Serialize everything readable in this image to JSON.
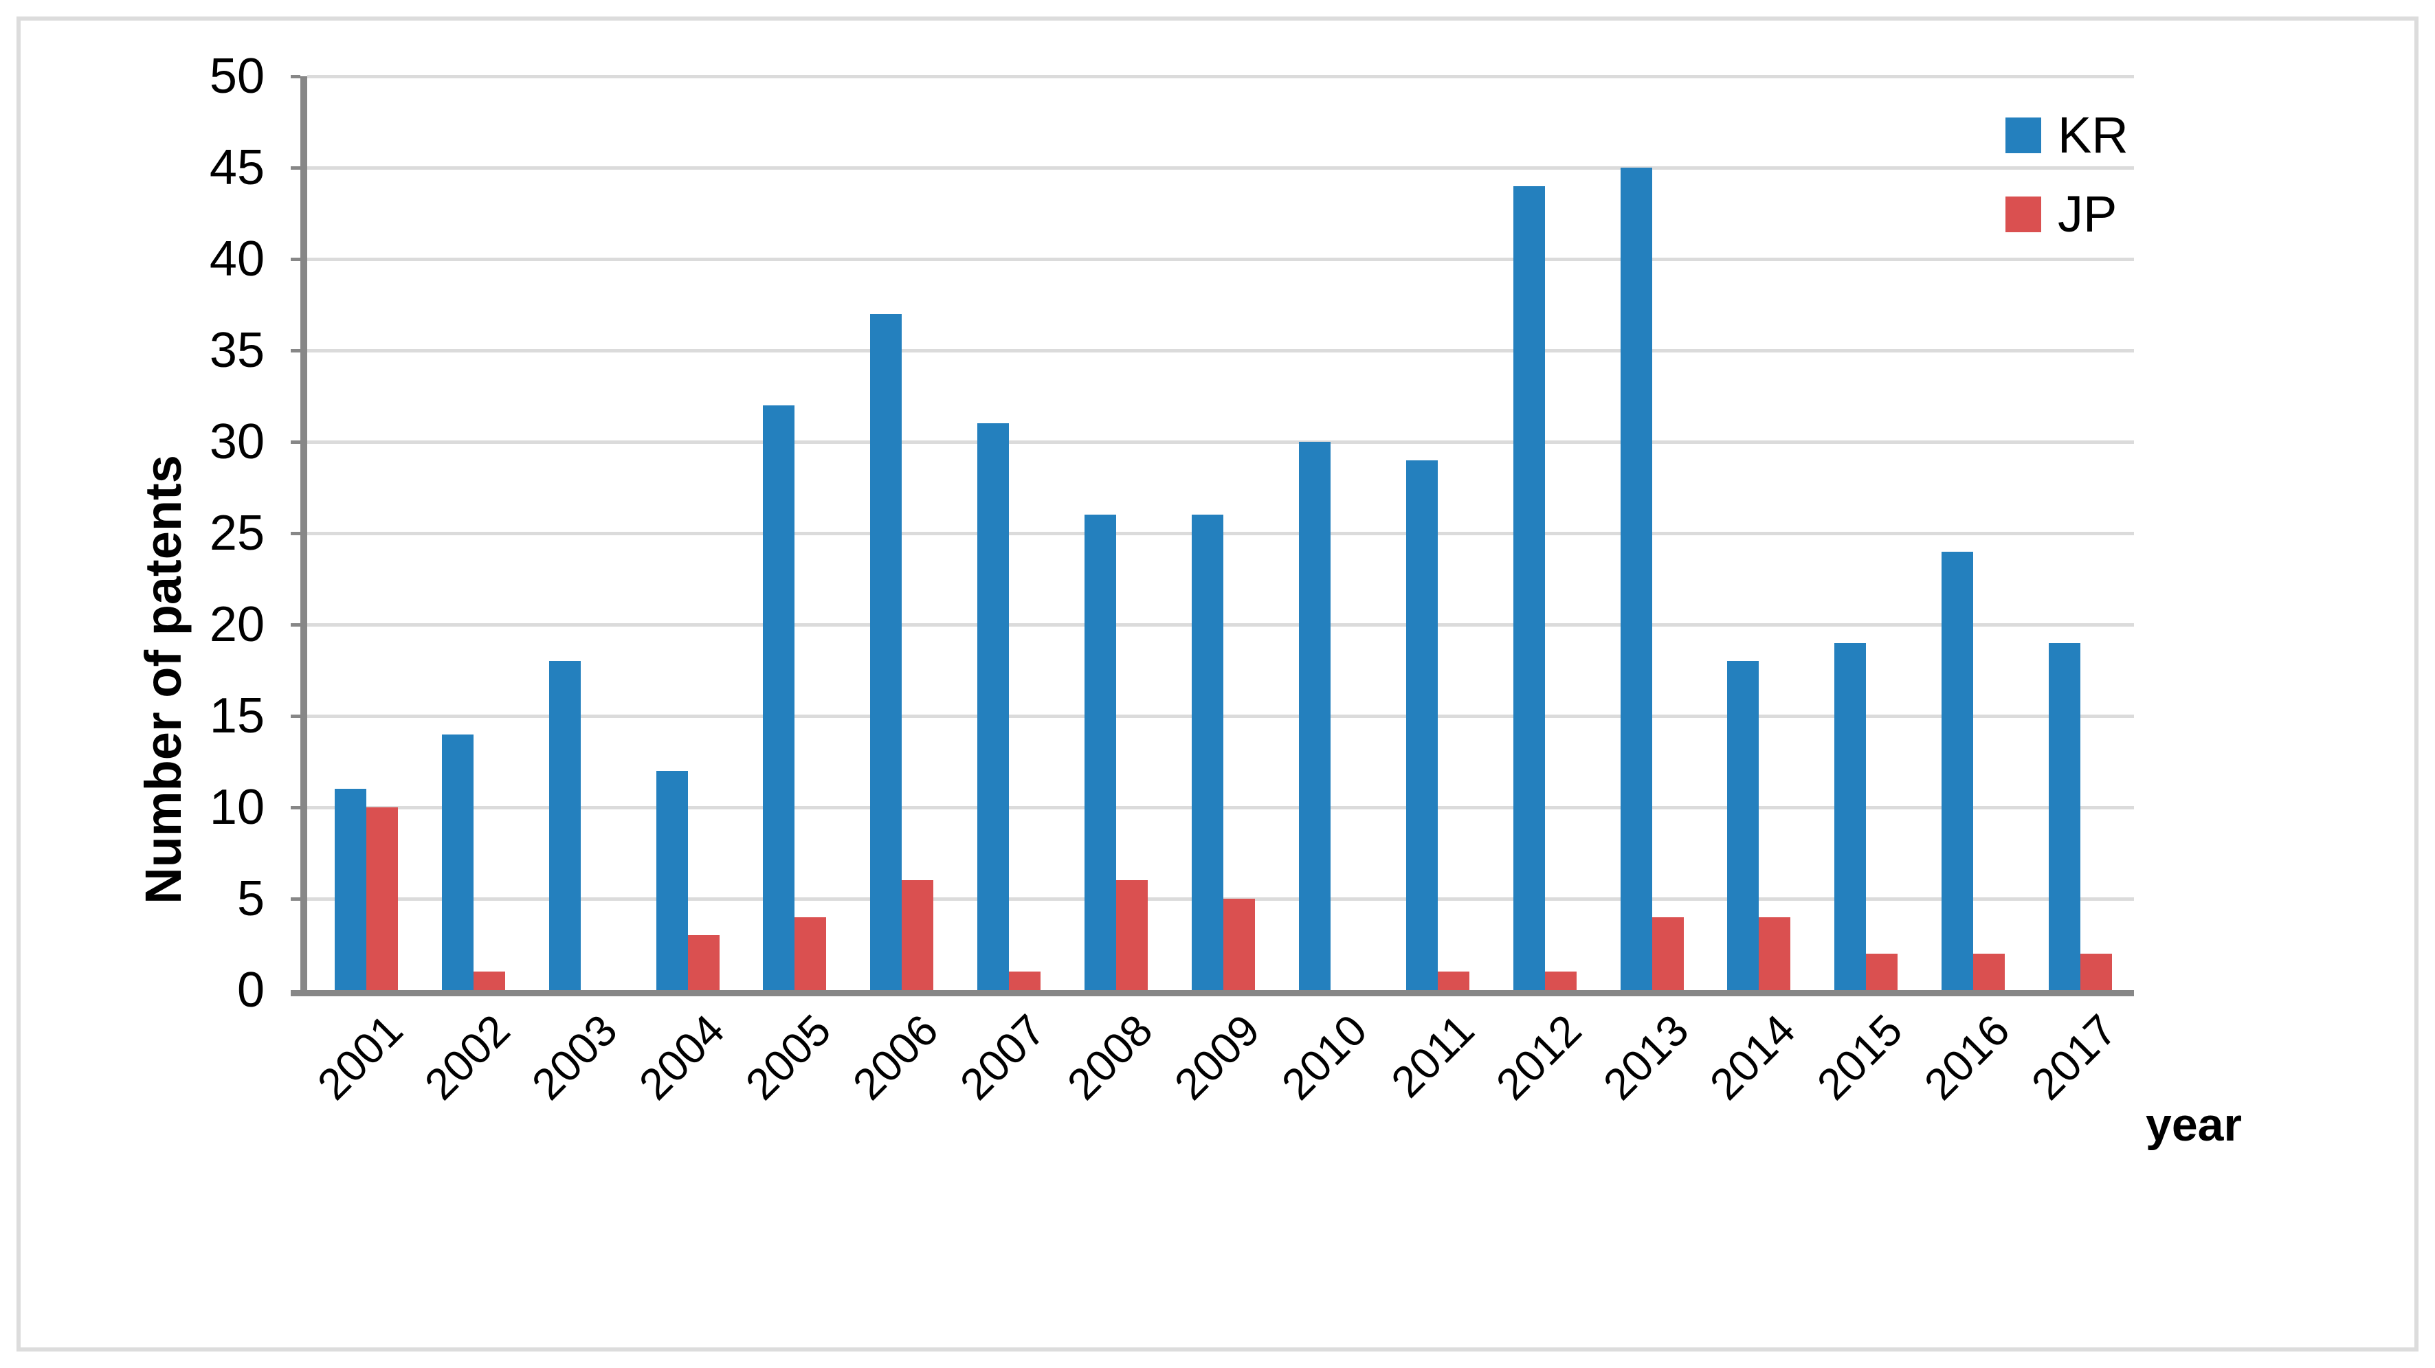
{
  "figure": {
    "background": "#ffffff",
    "border_color": "#dcdcdc"
  },
  "chart_data": {
    "type": "bar",
    "title": "",
    "categories": [
      "2001",
      "2002",
      "2003",
      "2004",
      "2005",
      "2006",
      "2007",
      "2008",
      "2009",
      "2010",
      "2011",
      "2012",
      "2013",
      "2014",
      "2015",
      "2016",
      "2017"
    ],
    "series": [
      {
        "name": "KR",
        "color": "#2480BE",
        "values": [
          11,
          14,
          18,
          12,
          32,
          37,
          31,
          26,
          26,
          30,
          29,
          44,
          45,
          18,
          19,
          24,
          19
        ]
      },
      {
        "name": "JP",
        "color": "#DA5050",
        "values": [
          10,
          1,
          0,
          3,
          4,
          6,
          1,
          6,
          5,
          0,
          1,
          1,
          4,
          4,
          2,
          2,
          2
        ]
      }
    ],
    "xlabel": "year",
    "ylabel": "Number of patents",
    "ylim": [
      0,
      50
    ],
    "yticks": [
      0,
      5,
      10,
      15,
      20,
      25,
      30,
      35,
      40,
      45,
      50
    ],
    "grid": "horizontal",
    "legend_position": "top-right",
    "gridline_color": "#dbdbdb",
    "axis_color": "#878787"
  }
}
